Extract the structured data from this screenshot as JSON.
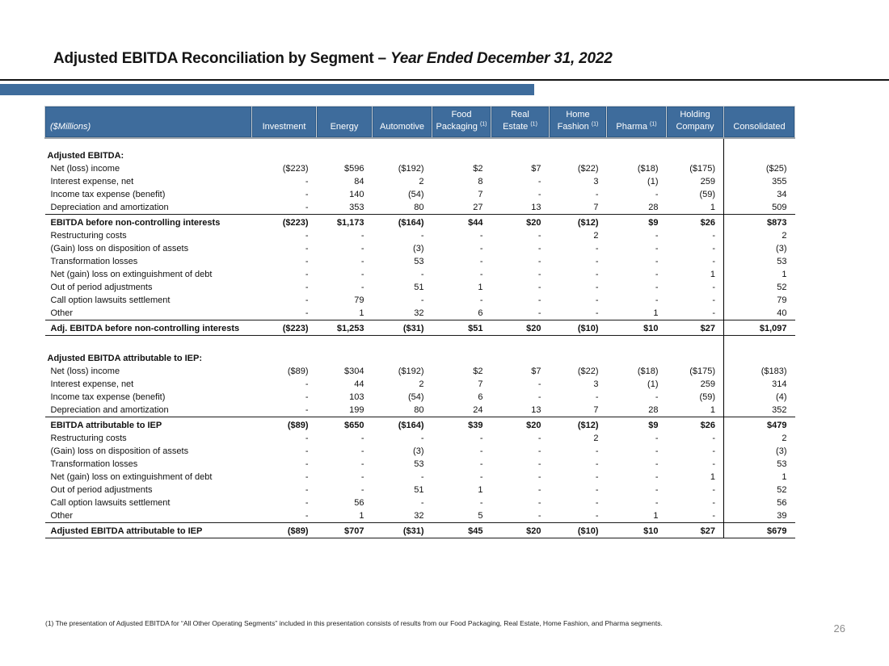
{
  "slide": {
    "title": {
      "main": "Adjusted EBITDA Reconciliation by Segment – ",
      "emphasis": "Year Ended December 31, 2022"
    },
    "footnote": "(1) The presentation of Adjusted EBITDA for “All Other Operating Segments” included in this presentation consists of results from our Food Packaging, Real Estate, Home Fashion, and Pharma segments.",
    "page_number": "26"
  },
  "colors": {
    "accent_blue": "#3e6c9c",
    "rule_black": "#141414"
  },
  "table": {
    "unit_label": "($Millions)",
    "columns": [
      {
        "lines": [
          "Investment"
        ],
        "sup": ""
      },
      {
        "lines": [
          "Energy"
        ],
        "sup": ""
      },
      {
        "lines": [
          "Automotive"
        ],
        "sup": ""
      },
      {
        "lines": [
          "Food",
          "Packaging"
        ],
        "sup": "(1)"
      },
      {
        "lines": [
          "Real",
          "Estate"
        ],
        "sup": "(1)"
      },
      {
        "lines": [
          "Home",
          "Fashion"
        ],
        "sup": "(1)"
      },
      {
        "lines": [
          "Pharma"
        ],
        "sup": "(1)"
      },
      {
        "lines": [
          "Holding",
          "Company"
        ],
        "sup": ""
      },
      {
        "lines": [
          "Consolidated"
        ],
        "sup": ""
      }
    ],
    "sections": [
      {
        "heading": "Adjusted EBITDA:",
        "rows": [
          {
            "label": "Net (loss) income",
            "style": "normal",
            "values": [
              "($223)",
              "$596",
              "($192)",
              "$2",
              "$7",
              "($22)",
              "($18)",
              "($175)",
              "($25)"
            ]
          },
          {
            "label": "Interest expense, net",
            "style": "normal",
            "values": [
              "-",
              "84",
              "2",
              "8",
              "-",
              "3",
              "(1)",
              "259",
              "355"
            ]
          },
          {
            "label": "Income tax expense (benefit)",
            "style": "normal",
            "values": [
              "-",
              "140",
              "(54)",
              "7",
              "-",
              "-",
              "-",
              "(59)",
              "34"
            ]
          },
          {
            "label": "Depreciation and amortization",
            "style": "normal",
            "values": [
              "-",
              "353",
              "80",
              "27",
              "13",
              "7",
              "28",
              "1",
              "509"
            ]
          },
          {
            "label": "EBITDA before non-controlling interests",
            "style": "subtotal",
            "values": [
              "($223)",
              "$1,173",
              "($164)",
              "$44",
              "$20",
              "($12)",
              "$9",
              "$26",
              "$873"
            ]
          },
          {
            "label": "Restructuring costs",
            "style": "normal",
            "values": [
              "-",
              "-",
              "-",
              "-",
              "-",
              "2",
              "-",
              "-",
              "2"
            ]
          },
          {
            "label": "(Gain) loss on disposition of assets",
            "style": "normal",
            "values": [
              "-",
              "-",
              "(3)",
              "-",
              "-",
              "-",
              "-",
              "-",
              "(3)"
            ]
          },
          {
            "label": "Transformation losses",
            "style": "normal",
            "values": [
              "-",
              "-",
              "53",
              "-",
              "-",
              "-",
              "-",
              "-",
              "53"
            ]
          },
          {
            "label": "Net (gain) loss on extinguishment of debt",
            "style": "normal",
            "values": [
              "-",
              "-",
              "-",
              "-",
              "-",
              "-",
              "-",
              "1",
              "1"
            ]
          },
          {
            "label": "Out of period adjustments",
            "style": "normal",
            "values": [
              "-",
              "-",
              "51",
              "1",
              "-",
              "-",
              "-",
              "-",
              "52"
            ]
          },
          {
            "label": "Call option lawsuits settlement",
            "style": "normal",
            "values": [
              "-",
              "79",
              "-",
              "-",
              "-",
              "-",
              "-",
              "-",
              "79"
            ]
          },
          {
            "label": "Other",
            "style": "normal",
            "values": [
              "-",
              "1",
              "32",
              "6",
              "-",
              "-",
              "1",
              "-",
              "40"
            ]
          },
          {
            "label": "Adj. EBITDA before non-controlling interests",
            "style": "total",
            "values": [
              "($223)",
              "$1,253",
              "($31)",
              "$51",
              "$20",
              "($10)",
              "$10",
              "$27",
              "$1,097"
            ]
          }
        ]
      },
      {
        "heading": "Adjusted EBITDA attributable to IEP:",
        "rows": [
          {
            "label": "Net (loss) income",
            "style": "normal",
            "values": [
              "($89)",
              "$304",
              "($192)",
              "$2",
              "$7",
              "($22)",
              "($18)",
              "($175)",
              "($183)"
            ]
          },
          {
            "label": "Interest expense, net",
            "style": "normal",
            "values": [
              "-",
              "44",
              "2",
              "7",
              "-",
              "3",
              "(1)",
              "259",
              "314"
            ]
          },
          {
            "label": "Income tax expense (benefit)",
            "style": "normal",
            "values": [
              "-",
              "103",
              "(54)",
              "6",
              "-",
              "-",
              "-",
              "(59)",
              "(4)"
            ]
          },
          {
            "label": "Depreciation and amortization",
            "style": "normal",
            "values": [
              "-",
              "199",
              "80",
              "24",
              "13",
              "7",
              "28",
              "1",
              "352"
            ]
          },
          {
            "label": "EBITDA attributable to IEP",
            "style": "subtotal",
            "values": [
              "($89)",
              "$650",
              "($164)",
              "$39",
              "$20",
              "($12)",
              "$9",
              "$26",
              "$479"
            ]
          },
          {
            "label": "Restructuring costs",
            "style": "normal",
            "values": [
              "-",
              "-",
              "-",
              "-",
              "-",
              "2",
              "-",
              "-",
              "2"
            ]
          },
          {
            "label": "(Gain) loss on disposition of assets",
            "style": "normal",
            "values": [
              "-",
              "-",
              "(3)",
              "-",
              "-",
              "-",
              "-",
              "-",
              "(3)"
            ]
          },
          {
            "label": "Transformation losses",
            "style": "normal",
            "values": [
              "-",
              "-",
              "53",
              "-",
              "-",
              "-",
              "-",
              "-",
              "53"
            ]
          },
          {
            "label": "Net (gain) loss on extinguishment of debt",
            "style": "normal",
            "values": [
              "-",
              "-",
              "-",
              "-",
              "-",
              "-",
              "-",
              "1",
              "1"
            ]
          },
          {
            "label": "Out of period adjustments",
            "style": "normal",
            "values": [
              "-",
              "-",
              "51",
              "1",
              "-",
              "-",
              "-",
              "-",
              "52"
            ]
          },
          {
            "label": "Call option lawsuits settlement",
            "style": "normal",
            "values": [
              "-",
              "56",
              "-",
              "-",
              "-",
              "-",
              "-",
              "-",
              "56"
            ]
          },
          {
            "label": "Other",
            "style": "normal",
            "values": [
              "-",
              "1",
              "32",
              "5",
              "-",
              "-",
              "1",
              "-",
              "39"
            ]
          },
          {
            "label": "Adjusted EBITDA attributable to IEP",
            "style": "total",
            "values": [
              "($89)",
              "$707",
              "($31)",
              "$45",
              "$20",
              "($10)",
              "$10",
              "$27",
              "$679"
            ]
          }
        ]
      }
    ]
  }
}
